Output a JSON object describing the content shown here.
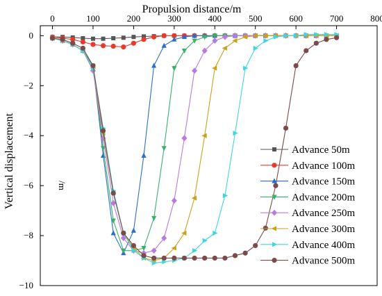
{
  "chart_data": {
    "type": "line",
    "xlabel": "Propulsion distance/m",
    "ylabel": "Vertical displacement",
    "ylabel_unit": "/m",
    "xlim": [
      -30,
      800
    ],
    "ylim": [
      -10,
      0.4
    ],
    "x_ticks": [
      0,
      100,
      200,
      300,
      400,
      500,
      600,
      700,
      800
    ],
    "y_ticks": [
      0,
      -2,
      -4,
      -6,
      -8,
      -10
    ],
    "x_axis_position": "top",
    "grid": false,
    "legend_position": "right",
    "series": [
      {
        "name": "Advance 50m",
        "color": "#555555",
        "marker": "square",
        "x": [
          0,
          25,
          50,
          75,
          100,
          125,
          150,
          175,
          200,
          225,
          250,
          275,
          300,
          325,
          350,
          375,
          400,
          425,
          450,
          475,
          500,
          525,
          550,
          575,
          600,
          625,
          650,
          675,
          700
        ],
        "y": [
          -0.05,
          -0.05,
          -0.07,
          -0.1,
          -0.12,
          -0.12,
          -0.1,
          -0.08,
          -0.05,
          -0.03,
          -0.02,
          0,
          0,
          0,
          0,
          0,
          0,
          0,
          0,
          0,
          0,
          0,
          0,
          0,
          0,
          0,
          0,
          0,
          0
        ]
      },
      {
        "name": "Advance 100m",
        "color": "#e8392f",
        "marker": "circle",
        "x": [
          0,
          25,
          50,
          75,
          100,
          125,
          150,
          175,
          200,
          225,
          250,
          275,
          300,
          325,
          350,
          375,
          400,
          425,
          450,
          475,
          500,
          525,
          550,
          575,
          600,
          625,
          650,
          675,
          700
        ],
        "y": [
          -0.05,
          -0.1,
          -0.15,
          -0.25,
          -0.35,
          -0.4,
          -0.42,
          -0.45,
          -0.3,
          -0.15,
          -0.05,
          0,
          0,
          0,
          0,
          0,
          0,
          0,
          0,
          0,
          0,
          0,
          0,
          0,
          0,
          0,
          0,
          0,
          0
        ]
      },
      {
        "name": "Advance 150m",
        "color": "#2a6ecb",
        "marker": "triangle-up",
        "x": [
          0,
          25,
          50,
          75,
          100,
          125,
          150,
          175,
          200,
          225,
          250,
          275,
          300,
          325,
          350,
          375,
          400,
          425,
          450,
          475,
          500,
          525,
          550,
          575,
          600,
          625,
          650,
          675,
          700
        ],
        "y": [
          -0.1,
          -0.2,
          -0.35,
          -0.6,
          -1.2,
          -4.8,
          -7.9,
          -8.7,
          -7.8,
          -4.8,
          -1.2,
          -0.4,
          -0.15,
          -0.05,
          0,
          0,
          0,
          0,
          0,
          0,
          0,
          0,
          0,
          0,
          0,
          0,
          0,
          0,
          0
        ]
      },
      {
        "name": "Advance 200m",
        "color": "#3bb06a",
        "marker": "triangle-down",
        "x": [
          0,
          25,
          50,
          75,
          100,
          125,
          150,
          175,
          200,
          225,
          250,
          275,
          300,
          325,
          350,
          375,
          400,
          425,
          450,
          475,
          500,
          525,
          550,
          575,
          600,
          625,
          650,
          675,
          700
        ],
        "y": [
          -0.1,
          -0.2,
          -0.35,
          -0.6,
          -1.2,
          -4.5,
          -7.4,
          -8.6,
          -8.6,
          -8.5,
          -7.3,
          -4.5,
          -1.3,
          -0.6,
          -0.2,
          -0.05,
          0,
          0,
          0,
          0,
          0,
          0,
          0,
          0,
          0,
          0,
          0,
          0,
          0
        ]
      },
      {
        "name": "Advance 250m",
        "color": "#b77be0",
        "marker": "diamond",
        "x": [
          0,
          25,
          50,
          75,
          100,
          125,
          150,
          175,
          200,
          225,
          250,
          275,
          300,
          325,
          350,
          375,
          400,
          425,
          450,
          475,
          500,
          525,
          550,
          575,
          600,
          625,
          650,
          675,
          700
        ],
        "y": [
          -0.1,
          -0.2,
          -0.35,
          -0.6,
          -1.4,
          -4.1,
          -6.7,
          -8.1,
          -8.6,
          -8.7,
          -8.6,
          -8.1,
          -6.6,
          -4.1,
          -1.4,
          -0.6,
          -0.2,
          -0.05,
          0,
          0,
          0,
          0,
          0,
          0,
          0,
          0,
          0,
          0,
          0
        ]
      },
      {
        "name": "Advance 300m",
        "color": "#c9a21b",
        "marker": "triangle-left",
        "x": [
          0,
          25,
          50,
          75,
          100,
          125,
          150,
          175,
          200,
          225,
          250,
          275,
          300,
          325,
          350,
          375,
          400,
          425,
          450,
          475,
          500,
          525,
          550,
          575,
          600,
          625,
          650,
          675,
          700
        ],
        "y": [
          -0.1,
          -0.2,
          -0.35,
          -0.6,
          -1.3,
          -3.9,
          -6.3,
          -7.9,
          -8.5,
          -8.9,
          -9.0,
          -8.9,
          -8.5,
          -7.9,
          -6.5,
          -4.0,
          -1.3,
          -0.5,
          -0.2,
          -0.05,
          0,
          0,
          0,
          0,
          0,
          0,
          0,
          0,
          0
        ]
      },
      {
        "name": "Advance 400m",
        "color": "#3fd6de",
        "marker": "triangle-right",
        "x": [
          0,
          25,
          50,
          75,
          100,
          125,
          150,
          175,
          200,
          225,
          250,
          275,
          300,
          325,
          350,
          375,
          400,
          425,
          450,
          475,
          500,
          525,
          550,
          575,
          600,
          625,
          650,
          675,
          700
        ],
        "y": [
          -0.1,
          -0.2,
          -0.35,
          -0.6,
          -1.3,
          -3.7,
          -6.2,
          -7.9,
          -8.6,
          -8.9,
          -9.1,
          -9.05,
          -9.0,
          -8.9,
          -8.6,
          -8.2,
          -7.9,
          -6.4,
          -3.9,
          -1.3,
          -0.5,
          -0.2,
          -0.05,
          0,
          0,
          0.05,
          0.05,
          0.05,
          0.05
        ]
      },
      {
        "name": "Advance 500m",
        "color": "#7b4a4a",
        "marker": "circle",
        "x": [
          0,
          25,
          50,
          75,
          100,
          125,
          150,
          175,
          200,
          225,
          250,
          275,
          300,
          325,
          350,
          375,
          400,
          425,
          450,
          475,
          500,
          525,
          550,
          575,
          600,
          625,
          650,
          675,
          700
        ],
        "y": [
          -0.1,
          -0.15,
          -0.3,
          -0.5,
          -1.2,
          -3.8,
          -6.3,
          -7.9,
          -8.4,
          -8.8,
          -8.9,
          -8.9,
          -8.9,
          -8.9,
          -8.9,
          -8.9,
          -8.9,
          -8.9,
          -8.8,
          -8.7,
          -8.4,
          -7.7,
          -6.0,
          -3.7,
          -1.2,
          -0.6,
          -0.3,
          -0.15,
          -0.08
        ]
      }
    ]
  }
}
